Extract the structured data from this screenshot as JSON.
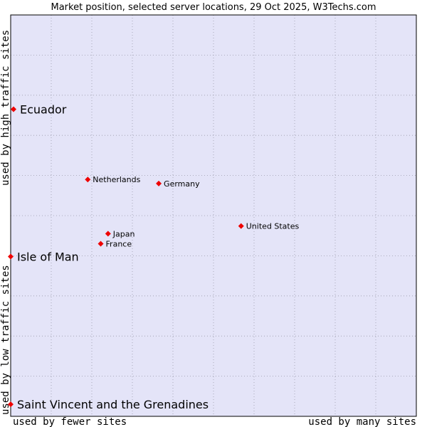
{
  "chart_data": {
    "type": "scatter",
    "title": "Market position, selected server locations, 29 Oct 2025, W3Techs.com",
    "xlabel_left": "used by fewer sites",
    "xlabel_right": "used by many sites",
    "ylabel_top": "used by high traffic sites",
    "ylabel_bottom": "used by low traffic sites",
    "xlim": [
      0,
      100
    ],
    "ylim": [
      0,
      100
    ],
    "grid": true,
    "colors": {
      "plot_bg": "#e4e4f8",
      "grid": "#9a9aaa",
      "point": "#ee0000",
      "frame": "#000000"
    },
    "points": [
      {
        "label": "Ecuador",
        "x": 0.7,
        "y": 76.5,
        "size": "big"
      },
      {
        "label": "Netherlands",
        "x": 19.0,
        "y": 59.0,
        "size": "small"
      },
      {
        "label": "Germany",
        "x": 36.5,
        "y": 58.0,
        "size": "small"
      },
      {
        "label": "United States",
        "x": 56.8,
        "y": 47.4,
        "size": "small"
      },
      {
        "label": "Japan",
        "x": 24.0,
        "y": 45.5,
        "size": "small"
      },
      {
        "label": "France",
        "x": 22.2,
        "y": 43.0,
        "size": "small"
      },
      {
        "label": "Isle of Man",
        "x": 0.0,
        "y": 39.8,
        "size": "big"
      },
      {
        "label": "Saint Vincent and the Grenadines",
        "x": 0.0,
        "y": 3.0,
        "size": "big"
      }
    ]
  }
}
